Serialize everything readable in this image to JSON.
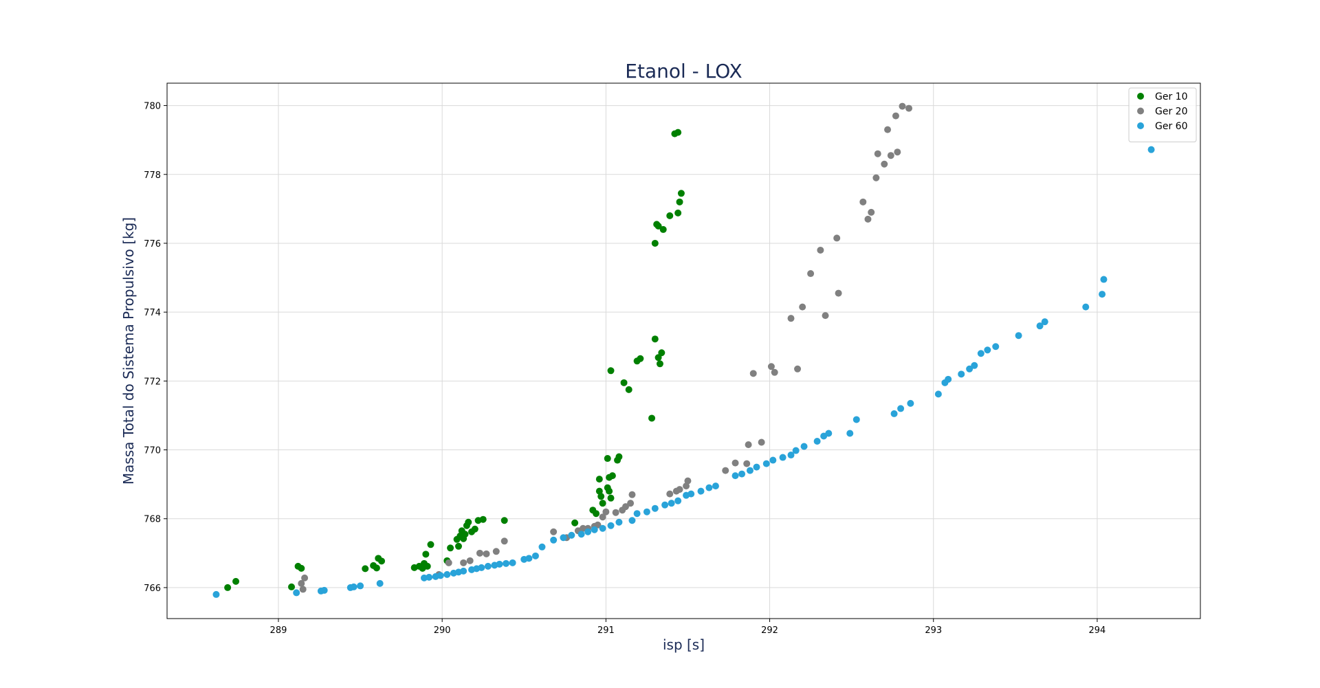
{
  "chart_data": {
    "type": "scatter",
    "title": "Etanol - LOX",
    "xlabel": "isp [s]",
    "ylabel": "Massa Total do Sistema Propulsivo [kg]",
    "xlim": [
      288.32,
      294.63
    ],
    "ylim": [
      765.1,
      780.65
    ],
    "xticks": [
      289,
      290,
      291,
      292,
      293,
      294
    ],
    "yticks": [
      766,
      768,
      770,
      772,
      774,
      776,
      778,
      780
    ],
    "grid": true,
    "legend": "top-right",
    "series": [
      {
        "name": "Ger 10",
        "color": "#008000",
        "points": [
          [
            288.69,
            766.0
          ],
          [
            288.74,
            766.18
          ],
          [
            289.08,
            766.02
          ],
          [
            289.12,
            766.62
          ],
          [
            289.14,
            766.56
          ],
          [
            289.53,
            766.55
          ],
          [
            289.58,
            766.64
          ],
          [
            289.6,
            766.57
          ],
          [
            289.61,
            766.85
          ],
          [
            289.63,
            766.77
          ],
          [
            289.83,
            766.58
          ],
          [
            289.86,
            766.62
          ],
          [
            289.88,
            766.56
          ],
          [
            289.89,
            766.7
          ],
          [
            289.9,
            766.97
          ],
          [
            289.91,
            766.62
          ],
          [
            289.93,
            767.25
          ],
          [
            290.03,
            766.78
          ],
          [
            290.05,
            767.15
          ],
          [
            290.09,
            767.4
          ],
          [
            290.1,
            767.2
          ],
          [
            290.11,
            767.5
          ],
          [
            290.12,
            767.65
          ],
          [
            290.13,
            767.42
          ],
          [
            290.14,
            767.55
          ],
          [
            290.15,
            767.8
          ],
          [
            290.16,
            767.9
          ],
          [
            290.18,
            767.62
          ],
          [
            290.2,
            767.7
          ],
          [
            290.22,
            767.95
          ],
          [
            290.25,
            767.98
          ],
          [
            290.38,
            767.95
          ],
          [
            290.81,
            767.88
          ],
          [
            290.92,
            768.25
          ],
          [
            290.94,
            768.15
          ],
          [
            290.96,
            768.8
          ],
          [
            290.97,
            768.65
          ],
          [
            290.98,
            768.45
          ],
          [
            290.96,
            769.15
          ],
          [
            291.01,
            768.9
          ],
          [
            291.02,
            768.8
          ],
          [
            291.03,
            768.6
          ],
          [
            291.04,
            769.25
          ],
          [
            291.07,
            769.7
          ],
          [
            291.08,
            769.8
          ],
          [
            291.01,
            769.75
          ],
          [
            291.02,
            769.2
          ],
          [
            291.03,
            772.3
          ],
          [
            291.11,
            771.95
          ],
          [
            291.14,
            771.75
          ],
          [
            291.19,
            772.58
          ],
          [
            291.21,
            772.65
          ],
          [
            291.28,
            770.92
          ],
          [
            291.3,
            773.22
          ],
          [
            291.32,
            772.68
          ],
          [
            291.33,
            772.5
          ],
          [
            291.34,
            772.82
          ],
          [
            291.3,
            776.0
          ],
          [
            291.31,
            776.55
          ],
          [
            291.32,
            776.5
          ],
          [
            291.35,
            776.4
          ],
          [
            291.39,
            776.8
          ],
          [
            291.42,
            779.18
          ],
          [
            291.44,
            779.22
          ],
          [
            291.44,
            776.88
          ],
          [
            291.45,
            777.2
          ],
          [
            291.46,
            777.45
          ]
        ]
      },
      {
        "name": "Ger 20",
        "color": "#808080",
        "points": [
          [
            289.14,
            766.12
          ],
          [
            289.15,
            765.95
          ],
          [
            289.16,
            766.28
          ],
          [
            289.98,
            766.38
          ],
          [
            290.04,
            766.72
          ],
          [
            290.13,
            766.72
          ],
          [
            290.17,
            766.78
          ],
          [
            290.23,
            767.0
          ],
          [
            290.27,
            766.98
          ],
          [
            290.33,
            767.05
          ],
          [
            290.38,
            767.35
          ],
          [
            290.68,
            767.62
          ],
          [
            290.76,
            767.45
          ],
          [
            290.83,
            767.65
          ],
          [
            290.86,
            767.72
          ],
          [
            290.89,
            767.72
          ],
          [
            290.93,
            767.78
          ],
          [
            290.95,
            767.82
          ],
          [
            290.98,
            768.05
          ],
          [
            291.0,
            768.2
          ],
          [
            291.06,
            768.18
          ],
          [
            291.1,
            768.25
          ],
          [
            291.12,
            768.35
          ],
          [
            291.15,
            768.45
          ],
          [
            291.16,
            768.7
          ],
          [
            291.39,
            768.72
          ],
          [
            291.43,
            768.8
          ],
          [
            291.45,
            768.85
          ],
          [
            291.49,
            768.95
          ],
          [
            291.5,
            769.1
          ],
          [
            291.73,
            769.4
          ],
          [
            291.79,
            769.62
          ],
          [
            291.86,
            769.6
          ],
          [
            291.87,
            770.15
          ],
          [
            291.95,
            770.22
          ],
          [
            291.9,
            772.22
          ],
          [
            292.01,
            772.42
          ],
          [
            292.03,
            772.25
          ],
          [
            292.17,
            772.35
          ],
          [
            292.13,
            773.82
          ],
          [
            292.2,
            774.15
          ],
          [
            292.25,
            775.12
          ],
          [
            292.31,
            775.8
          ],
          [
            292.34,
            773.9
          ],
          [
            292.41,
            776.15
          ],
          [
            292.42,
            774.55
          ],
          [
            292.57,
            777.2
          ],
          [
            292.6,
            776.7
          ],
          [
            292.62,
            776.9
          ],
          [
            292.65,
            777.9
          ],
          [
            292.66,
            778.6
          ],
          [
            292.7,
            778.3
          ],
          [
            292.72,
            779.3
          ],
          [
            292.74,
            778.55
          ],
          [
            292.77,
            779.7
          ],
          [
            292.78,
            778.65
          ],
          [
            292.81,
            779.98
          ],
          [
            292.85,
            779.92
          ]
        ]
      },
      {
        "name": "Ger 60",
        "color": "#29a3d9",
        "points": [
          [
            288.62,
            765.8
          ],
          [
            289.11,
            765.85
          ],
          [
            289.26,
            765.9
          ],
          [
            289.28,
            765.92
          ],
          [
            289.44,
            766.0
          ],
          [
            289.46,
            766.02
          ],
          [
            289.5,
            766.05
          ],
          [
            289.62,
            766.12
          ],
          [
            289.89,
            766.28
          ],
          [
            289.92,
            766.3
          ],
          [
            289.96,
            766.32
          ],
          [
            289.99,
            766.35
          ],
          [
            290.03,
            766.38
          ],
          [
            290.07,
            766.42
          ],
          [
            290.1,
            766.45
          ],
          [
            290.13,
            766.48
          ],
          [
            290.18,
            766.52
          ],
          [
            290.21,
            766.55
          ],
          [
            290.24,
            766.58
          ],
          [
            290.28,
            766.62
          ],
          [
            290.32,
            766.65
          ],
          [
            290.35,
            766.68
          ],
          [
            290.39,
            766.7
          ],
          [
            290.43,
            766.72
          ],
          [
            290.5,
            766.82
          ],
          [
            290.53,
            766.85
          ],
          [
            290.57,
            766.92
          ],
          [
            290.61,
            767.18
          ],
          [
            290.68,
            767.38
          ],
          [
            290.74,
            767.45
          ],
          [
            290.79,
            767.52
          ],
          [
            290.85,
            767.55
          ],
          [
            290.89,
            767.62
          ],
          [
            290.93,
            767.68
          ],
          [
            290.98,
            767.72
          ],
          [
            291.03,
            767.8
          ],
          [
            291.08,
            767.9
          ],
          [
            291.16,
            767.95
          ],
          [
            291.19,
            768.15
          ],
          [
            291.25,
            768.2
          ],
          [
            291.3,
            768.3
          ],
          [
            291.36,
            768.4
          ],
          [
            291.4,
            768.45
          ],
          [
            291.44,
            768.52
          ],
          [
            291.49,
            768.68
          ],
          [
            291.52,
            768.72
          ],
          [
            291.58,
            768.8
          ],
          [
            291.63,
            768.9
          ],
          [
            291.67,
            768.95
          ],
          [
            291.79,
            769.25
          ],
          [
            291.83,
            769.3
          ],
          [
            291.88,
            769.4
          ],
          [
            291.92,
            769.5
          ],
          [
            291.98,
            769.6
          ],
          [
            292.02,
            769.7
          ],
          [
            292.08,
            769.78
          ],
          [
            292.13,
            769.85
          ],
          [
            292.16,
            769.98
          ],
          [
            292.21,
            770.1
          ],
          [
            292.29,
            770.25
          ],
          [
            292.33,
            770.4
          ],
          [
            292.36,
            770.48
          ],
          [
            292.49,
            770.48
          ],
          [
            292.53,
            770.88
          ],
          [
            292.76,
            771.05
          ],
          [
            292.8,
            771.2
          ],
          [
            292.86,
            771.35
          ],
          [
            293.03,
            771.62
          ],
          [
            293.07,
            771.95
          ],
          [
            293.09,
            772.05
          ],
          [
            293.17,
            772.2
          ],
          [
            293.22,
            772.35
          ],
          [
            293.25,
            772.45
          ],
          [
            293.29,
            772.8
          ],
          [
            293.33,
            772.9
          ],
          [
            293.38,
            773.0
          ],
          [
            293.52,
            773.32
          ],
          [
            293.65,
            773.6
          ],
          [
            293.68,
            773.72
          ],
          [
            293.93,
            774.15
          ],
          [
            294.03,
            774.52
          ],
          [
            294.04,
            774.95
          ],
          [
            294.33,
            778.72
          ]
        ]
      }
    ]
  }
}
